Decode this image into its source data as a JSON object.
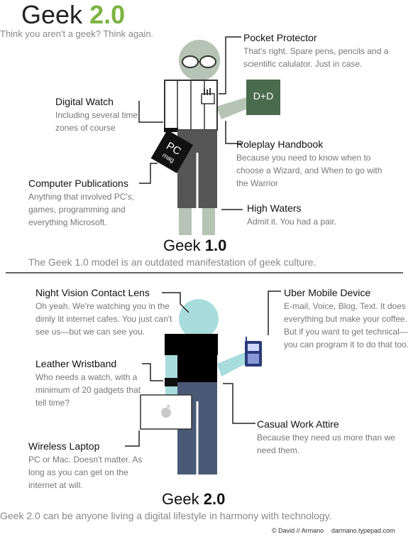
{
  "header": {
    "title_word": "Geek",
    "title_version": "2.0",
    "subtitle": "Think you aren't a geek?  Think again."
  },
  "geek1": {
    "heading_word": "Geek",
    "heading_version": "1.0",
    "tagline": "The Geek 1.0 model is an outdated manifestation of geek culture.",
    "book_text": "D+D",
    "mag_text_1": "PC",
    "mag_text_2": "mag",
    "callouts": {
      "pocket_protector": {
        "title": "Pocket Protector",
        "desc": "That's right.  Spare pens, pencils and a scientific calulator.  Just in case."
      },
      "digital_watch": {
        "title": "Digital Watch",
        "desc": "Including several time zones of course"
      },
      "roleplay_handbook": {
        "title": "Roleplay Handbook",
        "desc": "Because you need to know when to choose a Wizard, and When to go with the Warrior"
      },
      "computer_publications": {
        "title": "Computer Publications",
        "desc": "Anything that involved PC's, games, programming and everything Microsoft."
      },
      "high_waters": {
        "title": "High Waters",
        "desc": "Admit it.  You had a pair."
      }
    }
  },
  "geek2": {
    "heading_word": "Geek",
    "heading_version": "2.0",
    "tagline": "Geek 2.0 can be anyone living a digital lifestyle in harmony with technology.",
    "callouts": {
      "night_vision": {
        "title": "Night Vision Contact Lens",
        "desc": "Oh yeah.  We're watching you in the dimly lit internet cafes.  You just can't see us—but we can see you."
      },
      "uber_mobile": {
        "title": "Uber Mobile Device",
        "desc": "E-mail, Voice, Blog, Text. It does everything but make your coffee.  But if you want to get technical—you can program it to do that too."
      },
      "leather_wristband": {
        "title": "Leather Wristband",
        "desc": "Who needs a watch, with a minimum of 20 gadgets that tell time?"
      },
      "casual_work_attire": {
        "title": "Casual Work Attire",
        "desc": "Because they need us more than we need them."
      },
      "wireless_laptop": {
        "title": "Wireless Laptop",
        "desc": "PC or Mac.  Doesn't matter. As long as you can get on the internet at will."
      }
    }
  },
  "footer": {
    "copyright": "© David // Armano",
    "url": "darmano.typepad.com"
  },
  "colors": {
    "accent_green": "#7cb342",
    "geek1_skin": "#b6c4b5",
    "geek1_pants": "#555555",
    "book_green": "#4a6b4d",
    "geek2_skin": "#a9dcdc",
    "geek2_pants": "#4a5a76",
    "geek2_shirt": "#000000",
    "text_gray": "#777777"
  }
}
